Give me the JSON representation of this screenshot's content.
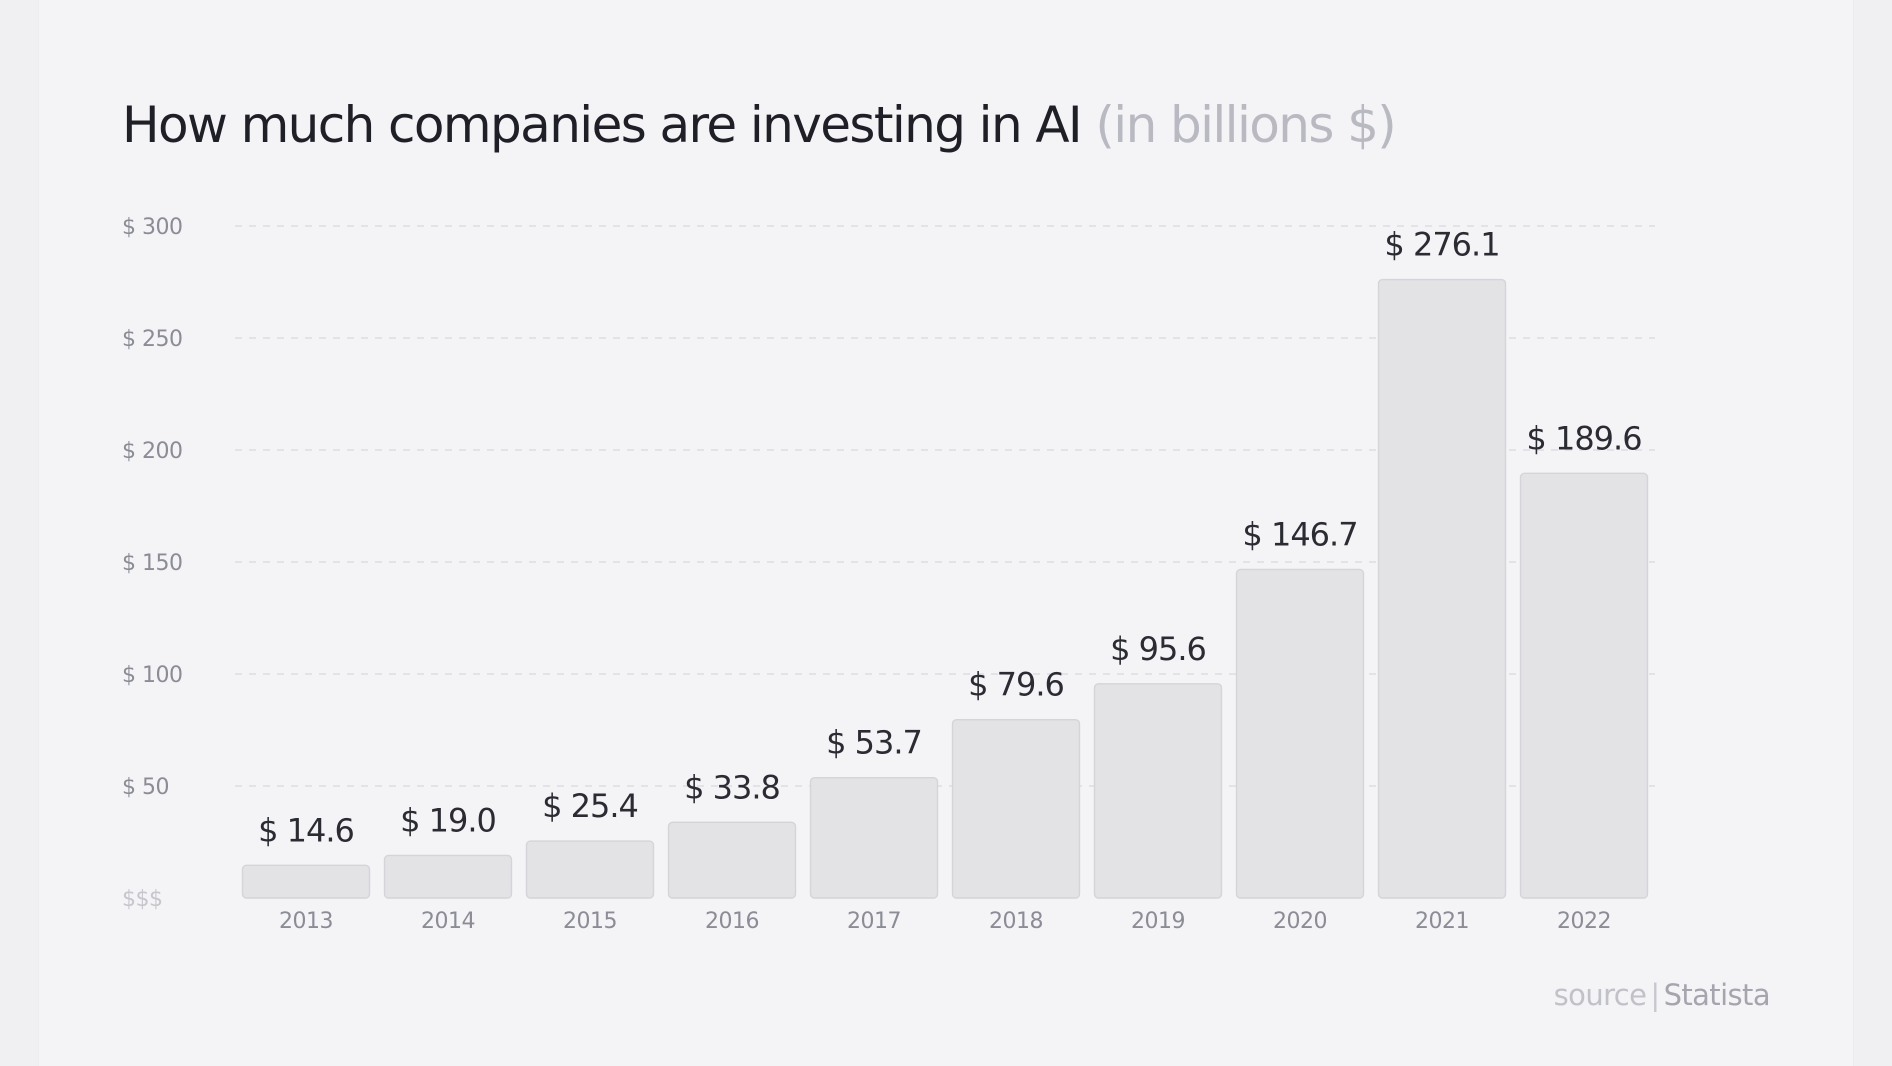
{
  "title": "How much companies are investing in AI",
  "subtitle": "(in billions $)",
  "source": {
    "label": "source",
    "divider": "|",
    "name": "Statista"
  },
  "colors": {
    "bar_fill": "#e3e3e6",
    "bar_stroke": "#d4d4d9",
    "title": "#1f2027",
    "subtitle": "#b9b9c2",
    "axis_text": "#8b8c95",
    "value_label": "#2b2c33",
    "gridline": "#dddde2"
  },
  "chart_data": {
    "type": "bar",
    "title": "How much companies are investing in AI",
    "subtitle": "(in billions $)",
    "categories": [
      "2013",
      "2014",
      "2015",
      "2016",
      "2017",
      "2018",
      "2019",
      "2020",
      "2021",
      "2022"
    ],
    "values": [
      14.6,
      19.0,
      25.4,
      33.8,
      53.7,
      79.6,
      95.6,
      146.7,
      276.1,
      189.6
    ],
    "value_labels": [
      "$ 14.6",
      "$ 19.0",
      "$ 25.4",
      "$ 33.8",
      "$ 53.7",
      "$ 79.6",
      "$ 95.6",
      "$ 146.7",
      "$ 276.1",
      "$ 189.6"
    ],
    "y_ticks": [
      0,
      50,
      100,
      150,
      200,
      250,
      300
    ],
    "y_tick_labels": [
      "$$$",
      "$ 50",
      "$ 100",
      "$ 150",
      "$ 200",
      "$ 250",
      "$ 300"
    ],
    "ylim": [
      0,
      300
    ],
    "xlabel": "",
    "ylabel": "",
    "grid": true,
    "legend": "none"
  }
}
